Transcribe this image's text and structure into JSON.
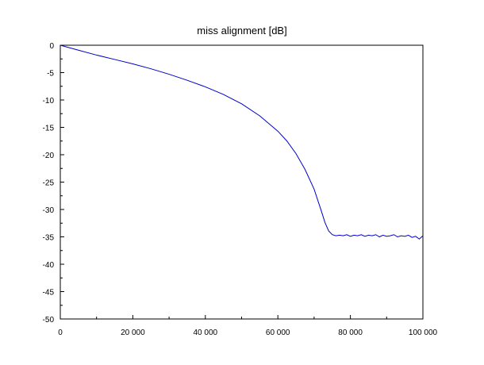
{
  "chart_data": {
    "type": "line",
    "title": "miss alignment [dB]",
    "xlabel": "",
    "ylabel": "",
    "xlim": [
      0,
      100000
    ],
    "ylim": [
      -50,
      0
    ],
    "x_ticks": [
      0,
      20000,
      40000,
      60000,
      80000,
      100000
    ],
    "x_tick_labels": [
      "0",
      "20 000",
      "40 000",
      "60 000",
      "80 000",
      "100 000"
    ],
    "y_ticks": [
      0,
      -5,
      -10,
      -15,
      -20,
      -25,
      -30,
      -35,
      -40,
      -45,
      -50
    ],
    "y_tick_labels": [
      "0",
      "-5",
      "-10",
      "-15",
      "-20",
      "-25",
      "-30",
      "-35",
      "-40",
      "-45",
      "-50"
    ],
    "grid": false,
    "colors": {
      "series": "#0000cc",
      "axes": "#000000"
    },
    "series": [
      {
        "x": [
          0,
          5000,
          10000,
          15000,
          20000,
          25000,
          30000,
          35000,
          40000,
          45000,
          50000,
          55000,
          60000,
          62500,
          65000,
          67500,
          70000,
          72000,
          73000,
          74000,
          75000,
          76000,
          77000,
          78000,
          79000,
          80000,
          81000,
          82000,
          83000,
          84000,
          85000,
          86000,
          87000,
          88000,
          89000,
          90000,
          91000,
          92000,
          93000,
          94000,
          95000,
          96000,
          97000,
          98000,
          99000,
          100000
        ],
        "y": [
          0,
          -0.9,
          -1.8,
          -2.6,
          -3.4,
          -4.3,
          -5.3,
          -6.4,
          -7.6,
          -9.0,
          -10.7,
          -12.9,
          -15.7,
          -17.5,
          -19.8,
          -22.7,
          -26.3,
          -30.3,
          -32.4,
          -33.9,
          -34.6,
          -34.8,
          -34.7,
          -34.8,
          -34.6,
          -34.9,
          -34.7,
          -34.8,
          -34.6,
          -34.9,
          -34.7,
          -34.8,
          -34.6,
          -35.0,
          -34.7,
          -34.9,
          -34.8,
          -34.6,
          -35.0,
          -34.8,
          -34.9,
          -34.7,
          -35.1,
          -34.9,
          -35.4,
          -34.8
        ]
      }
    ]
  }
}
